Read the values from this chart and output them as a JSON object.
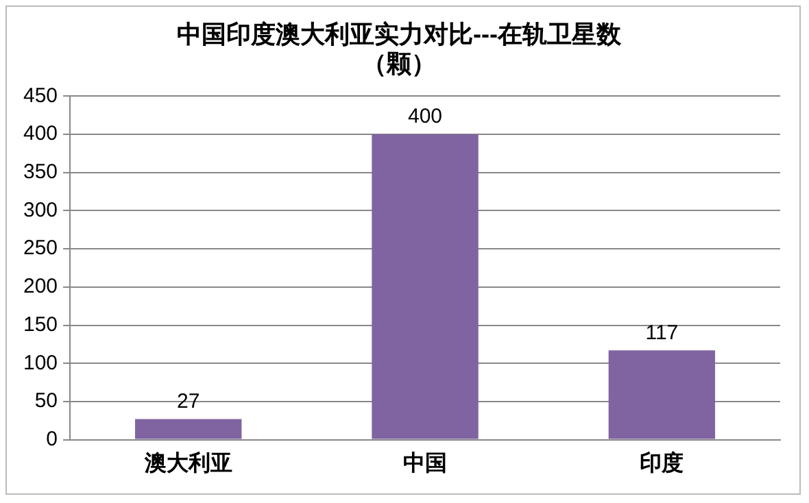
{
  "chart_data": {
    "type": "bar",
    "title": "中国印度澳大利亚实力对比---在轨卫星数（颗）",
    "categories": [
      "澳大利亚",
      "中国",
      "印度"
    ],
    "values": [
      27,
      400,
      117
    ],
    "color": "#8064a2",
    "ylim": [
      0,
      450
    ],
    "yticks": [
      0,
      50,
      100,
      150,
      200,
      250,
      300,
      350,
      400,
      450
    ],
    "grid": "y",
    "legend": false,
    "data_labels": true
  }
}
